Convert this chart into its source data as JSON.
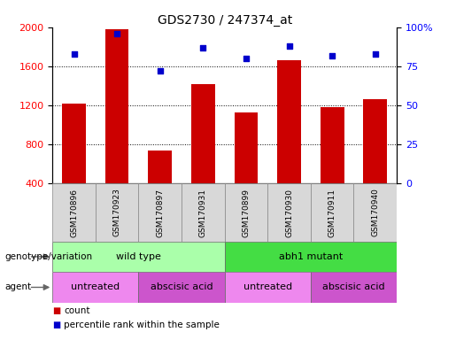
{
  "title": "GDS2730 / 247374_at",
  "samples": [
    "GSM170896",
    "GSM170923",
    "GSM170897",
    "GSM170931",
    "GSM170899",
    "GSM170930",
    "GSM170911",
    "GSM170940"
  ],
  "counts": [
    1220,
    1980,
    740,
    1420,
    1130,
    1660,
    1180,
    1260
  ],
  "percentiles": [
    83,
    96,
    72,
    87,
    80,
    88,
    82,
    83
  ],
  "bar_color": "#cc0000",
  "dot_color": "#0000cc",
  "ylim_left": [
    400,
    2000
  ],
  "ylim_right": [
    0,
    100
  ],
  "yticks_left": [
    400,
    800,
    1200,
    1600,
    2000
  ],
  "yticks_right": [
    0,
    25,
    50,
    75,
    100
  ],
  "ytick_labels_right": [
    "0",
    "25",
    "50",
    "75",
    "100%"
  ],
  "grid_values": [
    800,
    1200,
    1600
  ],
  "genotype_groups": [
    {
      "label": "wild type",
      "start": 0,
      "end": 4,
      "color": "#aaffaa"
    },
    {
      "label": "abh1 mutant",
      "start": 4,
      "end": 8,
      "color": "#44dd44"
    }
  ],
  "agent_groups": [
    {
      "label": "untreated",
      "start": 0,
      "end": 2,
      "color": "#ee88ee"
    },
    {
      "label": "abscisic acid",
      "start": 2,
      "end": 4,
      "color": "#cc55cc"
    },
    {
      "label": "untreated",
      "start": 4,
      "end": 6,
      "color": "#ee88ee"
    },
    {
      "label": "abscisic acid",
      "start": 6,
      "end": 8,
      "color": "#cc55cc"
    }
  ],
  "legend_count_color": "#cc0000",
  "legend_dot_color": "#0000cc",
  "background_color": "#ffffff",
  "bar_bottom": 400,
  "annotation_row1_label": "genotype/variation",
  "annotation_row2_label": "agent",
  "legend_count_label": "count",
  "legend_percentile_label": "percentile rank within the sample"
}
